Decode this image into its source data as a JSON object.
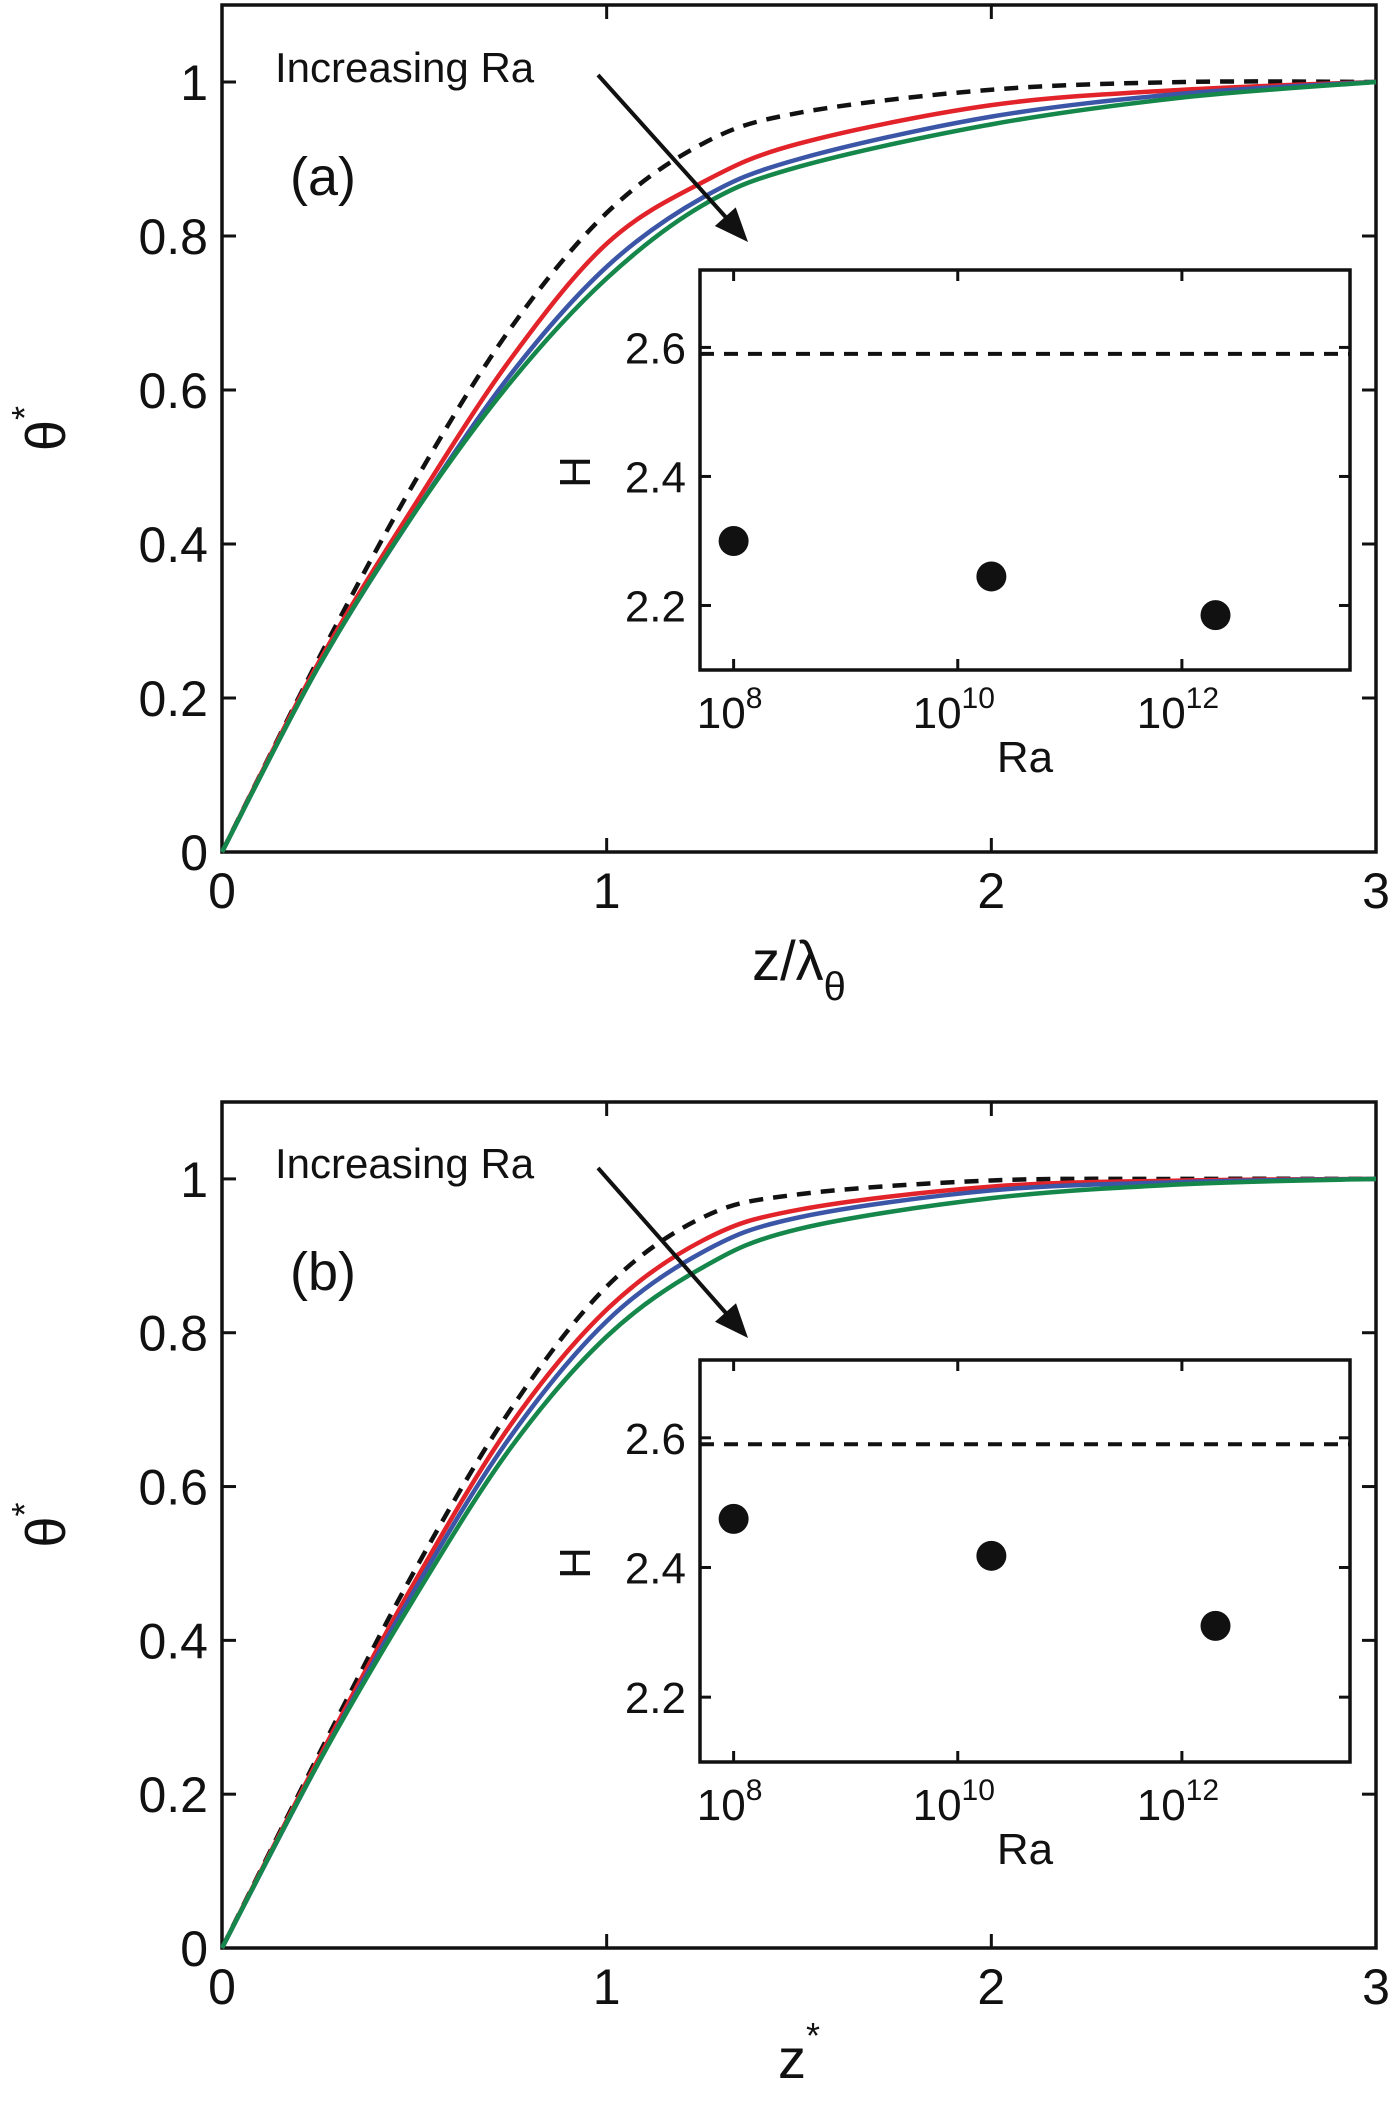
{
  "chart_data": [
    {
      "type": "line",
      "panel_label": "(a)",
      "xlabel": "z/λ",
      "xlabel_sub": "θ",
      "ylabel": "θ",
      "ylabel_sup": "*",
      "xlim": [
        0,
        3
      ],
      "ylim": [
        0,
        1.1
      ],
      "xticks": [
        "0",
        "1",
        "2",
        "3"
      ],
      "yticks": [
        "0",
        "0.2",
        "0.4",
        "0.6",
        "0.8",
        "1"
      ],
      "annotation": "Increasing Ra",
      "series": [
        {
          "style": "dashed",
          "color": "#111111",
          "x": [
            0,
            0.25,
            0.5,
            0.75,
            1.0,
            1.25,
            1.5,
            2.0,
            2.5,
            3.0
          ],
          "y": [
            0,
            0.25,
            0.48,
            0.68,
            0.83,
            0.92,
            0.96,
            0.99,
            1.0,
            1.0
          ]
        },
        {
          "color": "#e2232a",
          "x": [
            0,
            0.25,
            0.5,
            0.75,
            1.0,
            1.25,
            1.5,
            2.0,
            2.5,
            3.0
          ],
          "y": [
            0,
            0.245,
            0.45,
            0.64,
            0.79,
            0.87,
            0.92,
            0.97,
            0.99,
            1.0
          ]
        },
        {
          "color": "#3b56a6",
          "x": [
            0,
            0.25,
            0.5,
            0.75,
            1.0,
            1.25,
            1.5,
            2.0,
            2.5,
            3.0
          ],
          "y": [
            0,
            0.24,
            0.44,
            0.62,
            0.76,
            0.85,
            0.9,
            0.955,
            0.985,
            1.0
          ]
        },
        {
          "color": "#15874a",
          "x": [
            0,
            0.25,
            0.5,
            0.75,
            1.0,
            1.25,
            1.5,
            2.0,
            2.5,
            3.0
          ],
          "y": [
            0,
            0.24,
            0.44,
            0.61,
            0.745,
            0.84,
            0.89,
            0.945,
            0.98,
            1.0
          ]
        }
      ],
      "inset": {
        "type": "scatter",
        "xlabel": "Ra",
        "ylabel": "H",
        "xscale": "log",
        "xlim_exp": [
          7.7,
          13.5
        ],
        "ylim": [
          2.1,
          2.72
        ],
        "xticks": [
          {
            "base": "10",
            "exp": "8"
          },
          {
            "base": "10",
            "exp": "10"
          },
          {
            "base": "10",
            "exp": "12"
          }
        ],
        "yticks": [
          "2.2",
          "2.4",
          "2.6"
        ],
        "reference_line_y": 2.59,
        "points": [
          {
            "ra_exp": 8,
            "y": 2.3
          },
          {
            "ra_exp": 10.3,
            "y": 2.245
          },
          {
            "ra_exp": 12.3,
            "y": 2.185
          }
        ]
      }
    },
    {
      "type": "line",
      "panel_label": "(b)",
      "xlabel": "z",
      "xlabel_sup": "*",
      "ylabel": "θ",
      "ylabel_sup": "*",
      "xlim": [
        0,
        3
      ],
      "ylim": [
        0,
        1.1
      ],
      "xticks": [
        "0",
        "1",
        "2",
        "3"
      ],
      "yticks": [
        "0",
        "0.2",
        "0.4",
        "0.6",
        "0.8",
        "1"
      ],
      "annotation": "Increasing Ra",
      "series": [
        {
          "style": "dashed",
          "color": "#111111",
          "x": [
            0,
            0.25,
            0.5,
            0.75,
            1.0,
            1.25,
            1.5,
            2.0,
            2.5,
            3.0
          ],
          "y": [
            0,
            0.25,
            0.49,
            0.7,
            0.86,
            0.95,
            0.98,
            0.998,
            1.0,
            1.0
          ]
        },
        {
          "color": "#e2232a",
          "x": [
            0,
            0.25,
            0.5,
            0.75,
            1.0,
            1.25,
            1.5,
            2.0,
            2.5,
            3.0
          ],
          "y": [
            0,
            0.245,
            0.475,
            0.68,
            0.83,
            0.92,
            0.96,
            0.99,
            0.998,
            1.0
          ]
        },
        {
          "color": "#3b56a6",
          "x": [
            0,
            0.25,
            0.5,
            0.75,
            1.0,
            1.25,
            1.5,
            2.0,
            2.5,
            3.0
          ],
          "y": [
            0,
            0.24,
            0.465,
            0.665,
            0.815,
            0.905,
            0.95,
            0.985,
            0.996,
            1.0
          ]
        },
        {
          "color": "#15874a",
          "x": [
            0,
            0.25,
            0.5,
            0.75,
            1.0,
            1.25,
            1.5,
            2.0,
            2.5,
            3.0
          ],
          "y": [
            0,
            0.24,
            0.455,
            0.65,
            0.795,
            0.885,
            0.935,
            0.975,
            0.993,
            1.0
          ]
        }
      ],
      "inset": {
        "type": "scatter",
        "xlabel": "Ra",
        "ylabel": "H",
        "xscale": "log",
        "xlim_exp": [
          7.7,
          13.5
        ],
        "ylim": [
          2.1,
          2.72
        ],
        "xticks": [
          {
            "base": "10",
            "exp": "8"
          },
          {
            "base": "10",
            "exp": "10"
          },
          {
            "base": "10",
            "exp": "12"
          }
        ],
        "yticks": [
          "2.2",
          "2.4",
          "2.6"
        ],
        "reference_line_y": 2.59,
        "points": [
          {
            "ra_exp": 8,
            "y": 2.475
          },
          {
            "ra_exp": 10.3,
            "y": 2.418
          },
          {
            "ra_exp": 12.3,
            "y": 2.31
          }
        ]
      }
    }
  ]
}
